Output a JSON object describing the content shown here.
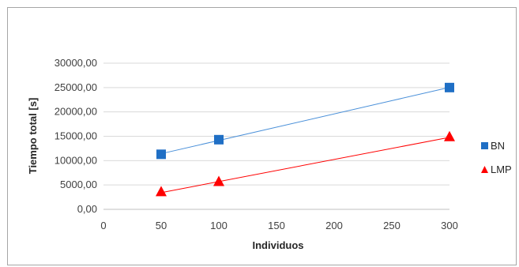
{
  "chart_data": {
    "type": "scatter",
    "title": "",
    "xlabel": "Individuos",
    "ylabel": "Tiempo total [s]",
    "xlim": [
      0,
      300
    ],
    "ylim": [
      0,
      30000
    ],
    "xticks": [
      0,
      50,
      100,
      150,
      200,
      250,
      300
    ],
    "xtick_labels": [
      "0",
      "50",
      "100",
      "150",
      "200",
      "250",
      "300"
    ],
    "yticks": [
      0,
      5000,
      10000,
      15000,
      20000,
      25000,
      30000
    ],
    "ytick_labels": [
      "0,00",
      "5000,00",
      "10000,00",
      "15000,00",
      "20000,00",
      "25000,00",
      "30000,00"
    ],
    "grid": "horizontal",
    "legend_position": "right",
    "series": [
      {
        "name": "BN",
        "marker": "square",
        "color": "#1f6fc5",
        "line_color": "#4a90d9",
        "trendline": true,
        "x": [
          50,
          100,
          300
        ],
        "y": [
          11300,
          14300,
          25000
        ]
      },
      {
        "name": "LMP",
        "marker": "triangle",
        "color": "#ff0000",
        "line_color": "#ff0000",
        "trendline": true,
        "x": [
          50,
          100,
          300
        ],
        "y": [
          3500,
          5600,
          14800
        ]
      }
    ]
  }
}
